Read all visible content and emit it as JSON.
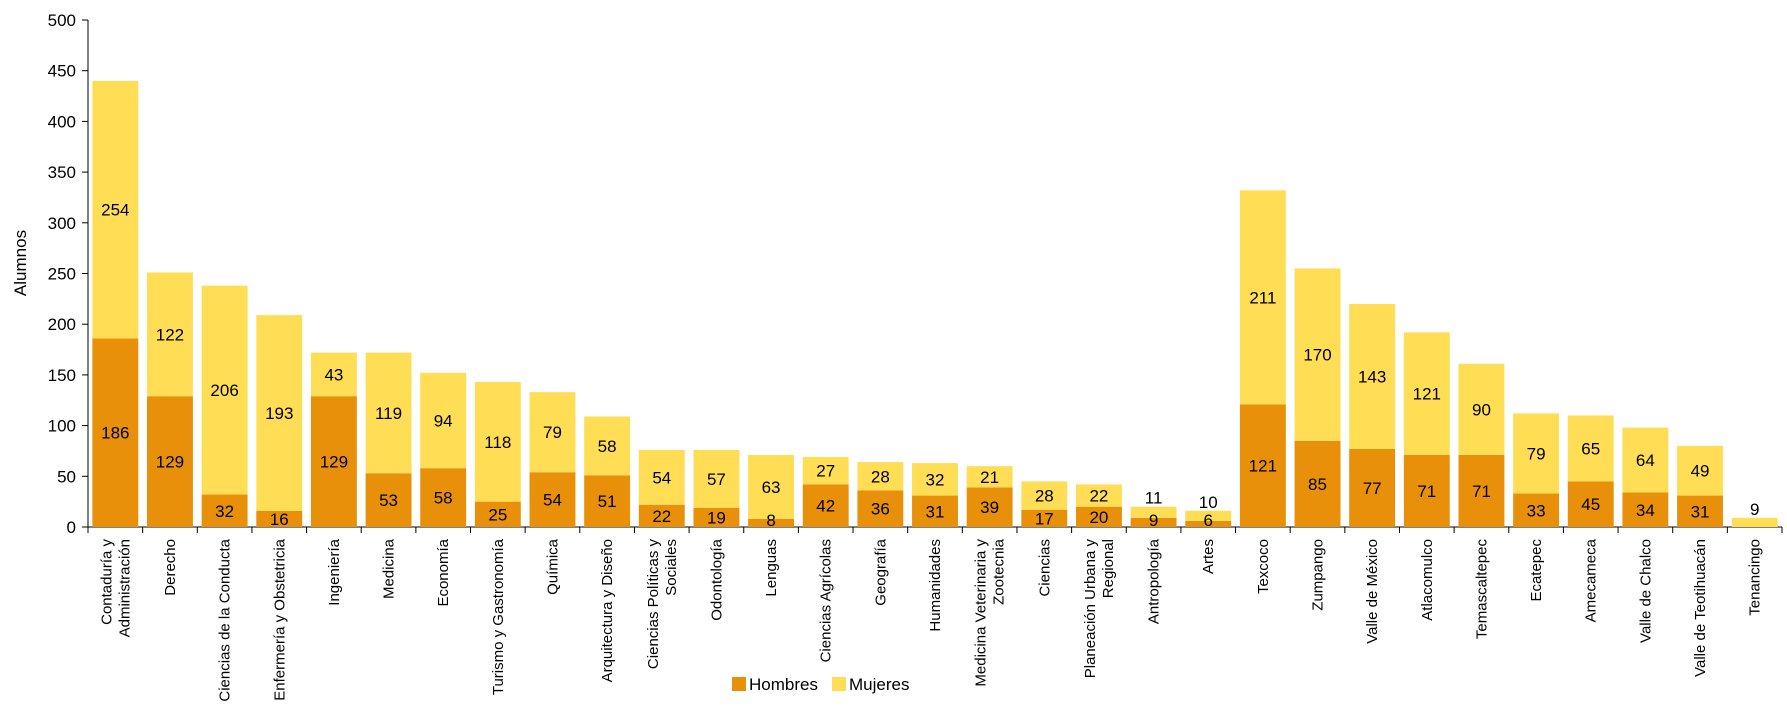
{
  "chart_data": {
    "type": "bar",
    "stacked": true,
    "title": "",
    "xlabel": "",
    "ylabel": "Alumnos",
    "ylim": [
      0,
      500
    ],
    "yticks": [
      0,
      50,
      100,
      150,
      200,
      250,
      300,
      350,
      400,
      450,
      500
    ],
    "grid": false,
    "legend_position": "bottom",
    "categories": [
      "Contaduría y Administración",
      "Derecho",
      "Ciencias de la Conducta",
      "Enfermería y Obstetricia",
      "Ingeniería",
      "Medicina",
      "Economía",
      "Turismo y Gastronomía",
      "Química",
      "Arquitectura y Diseño",
      "Ciencias Políticas y Sociales",
      "Odontología",
      "Lenguas",
      "Ciencias Agrícolas",
      "Geografía",
      "Humanidades",
      "Medicina Veterinaria y Zootecnia",
      "Ciencias",
      "Planeación Urbana y Regional",
      "Antropología",
      "Artes",
      "Texcoco",
      "Zumpango",
      "Valle de México",
      "Atlacomulco",
      "Temascaltepec",
      "Ecatepec",
      "Amecameca",
      "Valle de Chalco",
      "Valle de Teotihuacán",
      "Tenancingo"
    ],
    "category_lines": [
      [
        "Contaduría y",
        "Administración"
      ],
      [
        "Derecho"
      ],
      [
        "Ciencias de la Conducta"
      ],
      [
        "Enfermería y Obstetricia"
      ],
      [
        "Ingeniería"
      ],
      [
        "Medicina"
      ],
      [
        "Economía"
      ],
      [
        "Turismo y Gastronomía"
      ],
      [
        "Química"
      ],
      [
        "Arquitectura y Diseño"
      ],
      [
        "Ciencias Políticas y",
        "Sociales"
      ],
      [
        "Odontología"
      ],
      [
        "Lenguas"
      ],
      [
        "Ciencias Agrícolas"
      ],
      [
        "Geografía"
      ],
      [
        "Humanidades"
      ],
      [
        "Medicina Veterinaria y",
        "Zootecnia"
      ],
      [
        "Ciencias"
      ],
      [
        "Planeación Urbana y",
        "Regional"
      ],
      [
        "Antropología"
      ],
      [
        "Artes"
      ],
      [
        "Texcoco"
      ],
      [
        "Zumpango"
      ],
      [
        "Valle de México"
      ],
      [
        "Atlacomulco"
      ],
      [
        "Temascaltepec"
      ],
      [
        "Ecatepec"
      ],
      [
        "Amecameca"
      ],
      [
        "Valle de Chalco"
      ],
      [
        "Valle de Teotihuacán"
      ],
      [
        "Tenancingo"
      ]
    ],
    "series": [
      {
        "name": "Hombres",
        "color": "#E8900A",
        "values": [
          186,
          129,
          32,
          16,
          129,
          53,
          58,
          25,
          54,
          51,
          22,
          19,
          8,
          42,
          36,
          31,
          39,
          17,
          20,
          9,
          6,
          121,
          85,
          77,
          71,
          71,
          33,
          45,
          34,
          31,
          0
        ],
        "labels": [
          "186",
          "129",
          "32",
          "16",
          "129",
          "53",
          "58",
          "25",
          "54",
          "51",
          "22",
          "19",
          "8",
          "42",
          "36",
          "31",
          "39",
          "17",
          "20",
          "9",
          "6",
          "121",
          "85",
          "77",
          "71",
          "71",
          "33",
          "45",
          "34",
          "31",
          ""
        ]
      },
      {
        "name": "Mujeres",
        "color": "#FFDD55",
        "values": [
          254,
          122,
          206,
          193,
          43,
          119,
          94,
          118,
          79,
          58,
          54,
          57,
          63,
          27,
          28,
          32,
          21,
          28,
          22,
          11,
          10,
          211,
          170,
          143,
          121,
          90,
          79,
          65,
          64,
          49,
          9
        ],
        "labels": [
          "254",
          "122",
          "206",
          "193",
          "43",
          "119",
          "94",
          "118",
          "79",
          "58",
          "54",
          "57",
          "63",
          "27",
          "28",
          "32",
          "21",
          "28",
          "22",
          "11",
          "10",
          "211",
          "170",
          "143",
          "121",
          "90",
          "79",
          "65",
          "64",
          "49",
          "9"
        ]
      }
    ]
  }
}
